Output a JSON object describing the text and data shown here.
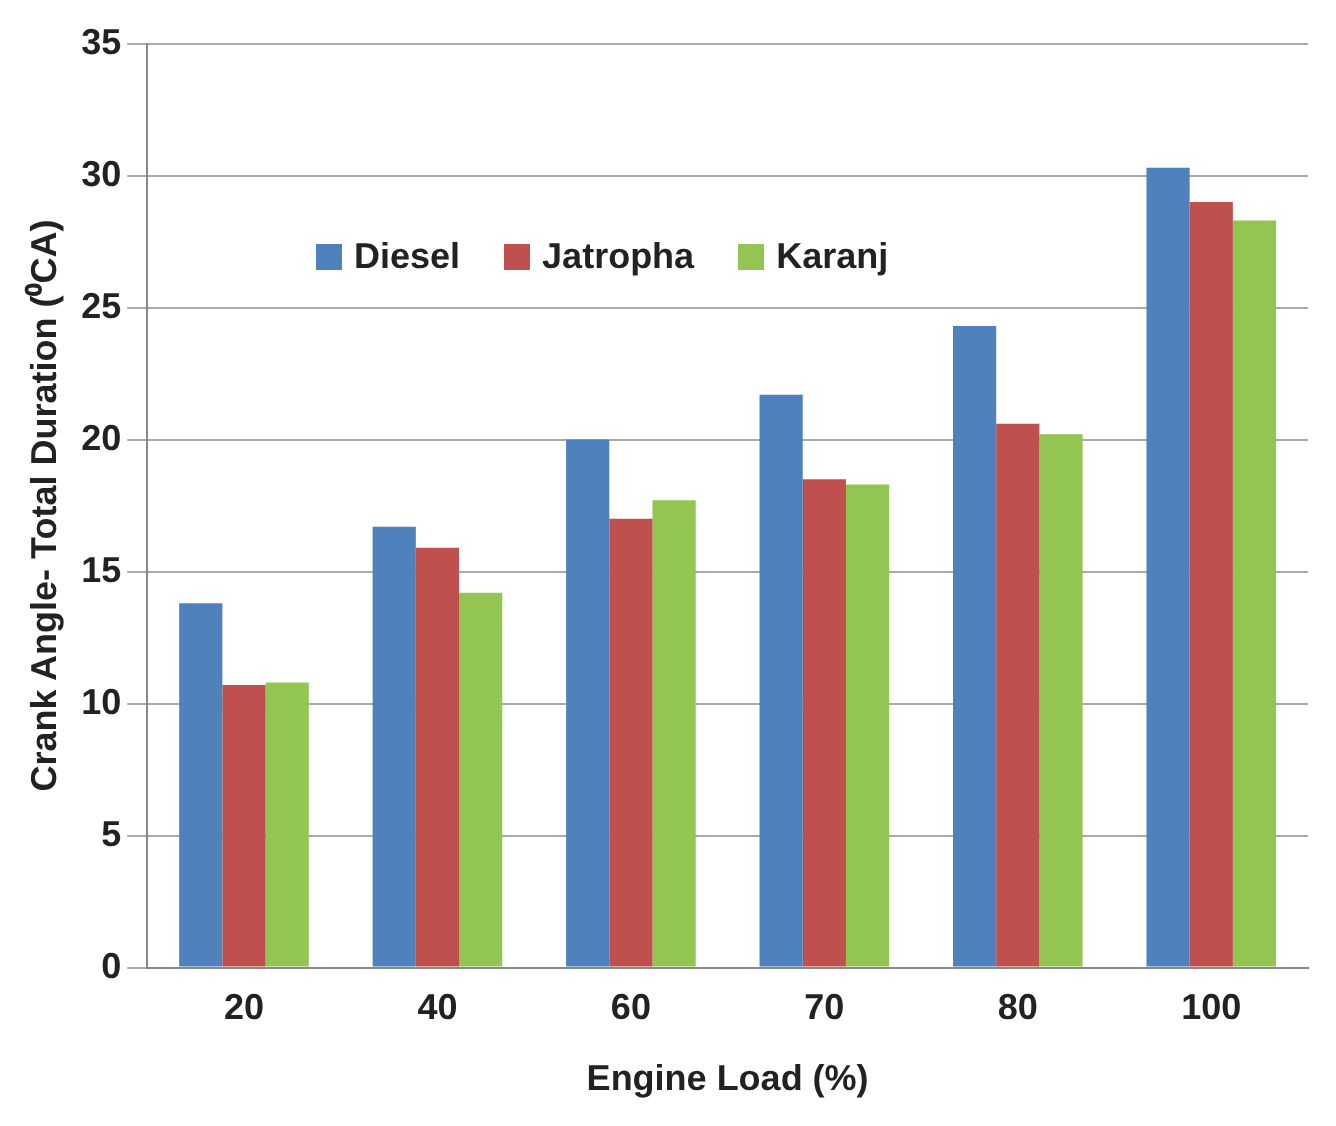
{
  "chart_data": {
    "type": "bar",
    "xlabel": "Engine Load (%)",
    "ylabel": "Crank Angle- Total Duration (⁰CA)",
    "categories": [
      "20",
      "40",
      "60",
      "70",
      "80",
      "100"
    ],
    "series": [
      {
        "name": "Diesel",
        "color": "#4f81bd",
        "values": [
          13.8,
          16.7,
          20.0,
          21.7,
          24.3,
          30.3
        ]
      },
      {
        "name": "Jatropha",
        "color": "#c0504d",
        "values": [
          10.7,
          15.9,
          17.0,
          18.5,
          20.6,
          29.0
        ]
      },
      {
        "name": "Karanj",
        "color": "#92c551",
        "values": [
          10.8,
          14.2,
          17.7,
          18.3,
          20.2,
          28.3
        ]
      }
    ],
    "ylim": [
      0,
      35
    ],
    "yticks": [
      0,
      5,
      10,
      15,
      20,
      25,
      30,
      35
    ],
    "grid": "y",
    "legend": "top left"
  }
}
